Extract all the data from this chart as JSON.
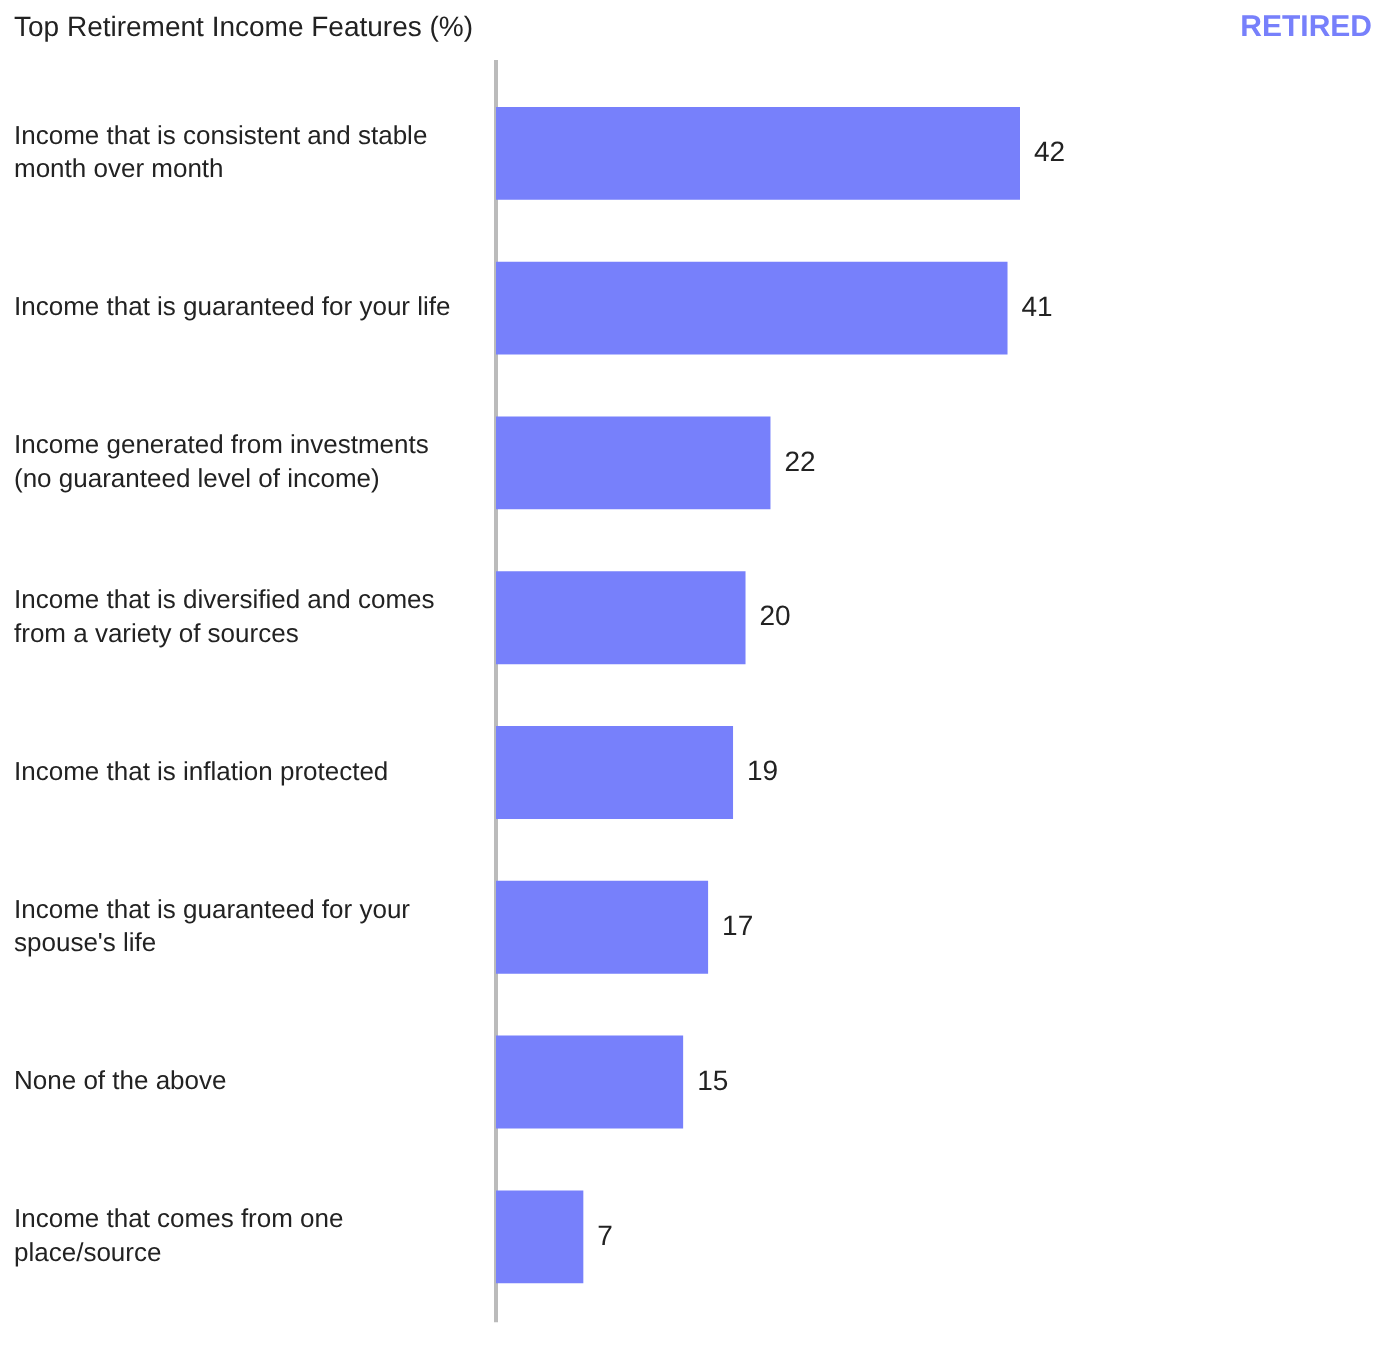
{
  "chart_data": {
    "type": "bar",
    "orientation": "horizontal",
    "title": "Top Retirement Income Features (%)",
    "categories": [
      "Income that is consistent and stable month over month",
      "Income that is guaranteed for your life",
      "Income generated from investments (no guaranteed level of income)",
      "Income that is diversified and comes from a variety of sources",
      "Income that is inflation protected",
      "Income that is guaranteed for your spouse's life",
      "None of the above",
      "Income that comes from one place/source"
    ],
    "series": [
      {
        "name": "RETIRED",
        "color": "#7780fb",
        "values": [
          42,
          41,
          22,
          20,
          19,
          17,
          15,
          7
        ]
      }
    ],
    "data_labels": true,
    "legend": "top right",
    "tick_labels": "y"
  }
}
